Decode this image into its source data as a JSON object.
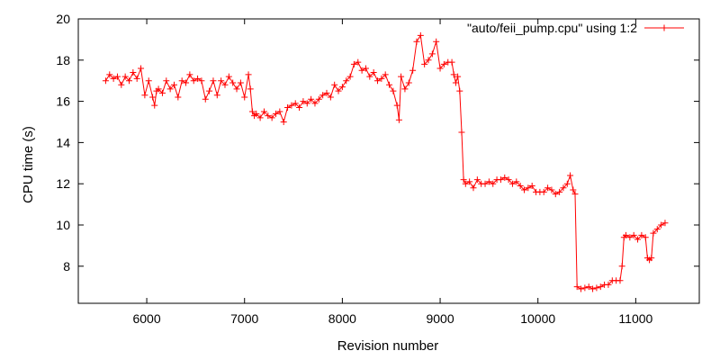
{
  "chart_data": {
    "type": "line",
    "title": "",
    "xlabel": "Revision number",
    "ylabel": "CPU time (s)",
    "xlim": [
      5300,
      11650
    ],
    "ylim": [
      6.2,
      20
    ],
    "x_ticks": [
      6000,
      7000,
      8000,
      9000,
      10000,
      11000
    ],
    "y_ticks": [
      8,
      10,
      12,
      14,
      16,
      18,
      20
    ],
    "grid": false,
    "legend_position": "top-right",
    "series": [
      {
        "name": "\"auto/feii_pump.cpu\" using 1:2",
        "color": "#ff0000",
        "marker": "plus",
        "x": [
          5580,
          5620,
          5660,
          5700,
          5740,
          5780,
          5820,
          5860,
          5900,
          5940,
          5980,
          6020,
          6060,
          6080,
          6100,
          6120,
          6160,
          6200,
          6240,
          6280,
          6320,
          6360,
          6400,
          6440,
          6480,
          6520,
          6560,
          6600,
          6640,
          6680,
          6720,
          6760,
          6800,
          6840,
          6880,
          6920,
          6960,
          7000,
          7040,
          7060,
          7080,
          7100,
          7120,
          7160,
          7200,
          7240,
          7280,
          7320,
          7360,
          7400,
          7440,
          7480,
          7520,
          7560,
          7600,
          7640,
          7680,
          7720,
          7760,
          7800,
          7840,
          7880,
          7920,
          7960,
          8000,
          8040,
          8080,
          8120,
          8160,
          8200,
          8240,
          8280,
          8320,
          8360,
          8400,
          8440,
          8480,
          8520,
          8560,
          8580,
          8600,
          8640,
          8680,
          8720,
          8760,
          8800,
          8840,
          8880,
          8920,
          8960,
          9000,
          9040,
          9080,
          9120,
          9140,
          9160,
          9180,
          9200,
          9220,
          9240,
          9260,
          9300,
          9340,
          9380,
          9420,
          9460,
          9500,
          9540,
          9580,
          9620,
          9660,
          9700,
          9740,
          9780,
          9820,
          9860,
          9900,
          9940,
          9980,
          10020,
          10060,
          10100,
          10140,
          10180,
          10220,
          10260,
          10300,
          10330,
          10360,
          10380,
          10400,
          10440,
          10480,
          10520,
          10560,
          10600,
          10640,
          10680,
          10720,
          10760,
          10800,
          10840,
          10860,
          10880,
          10900,
          10940,
          10980,
          11020,
          11060,
          11100,
          11120,
          11140,
          11160,
          11180,
          11220,
          11260,
          11300
        ],
        "y": [
          17.0,
          17.3,
          17.1,
          17.2,
          16.8,
          17.2,
          17.0,
          17.4,
          17.1,
          17.6,
          16.3,
          17.0,
          16.2,
          15.8,
          16.5,
          16.6,
          16.4,
          17.0,
          16.6,
          16.8,
          16.2,
          17.0,
          16.9,
          17.3,
          17.0,
          17.1,
          17.0,
          16.1,
          16.5,
          17.0,
          16.3,
          17.0,
          16.8,
          17.2,
          16.9,
          16.6,
          16.9,
          16.2,
          17.3,
          16.6,
          15.5,
          15.3,
          15.4,
          15.2,
          15.5,
          15.3,
          15.2,
          15.4,
          15.5,
          15.0,
          15.7,
          15.8,
          15.9,
          15.7,
          16.0,
          15.9,
          16.1,
          15.9,
          16.1,
          16.3,
          16.4,
          16.2,
          16.8,
          16.5,
          16.7,
          17.0,
          17.2,
          17.8,
          17.9,
          17.5,
          17.6,
          17.2,
          17.4,
          17.0,
          17.1,
          17.3,
          16.8,
          16.5,
          15.8,
          15.1,
          17.2,
          16.6,
          16.9,
          17.5,
          18.9,
          19.2,
          17.8,
          18.0,
          18.3,
          18.9,
          17.6,
          17.8,
          17.9,
          17.9,
          17.3,
          16.9,
          17.2,
          16.5,
          14.5,
          12.2,
          12.0,
          12.1,
          11.8,
          12.2,
          12.0,
          12.0,
          12.1,
          12.0,
          12.2,
          12.2,
          12.3,
          12.2,
          12.0,
          12.1,
          11.9,
          11.7,
          11.8,
          11.9,
          11.6,
          11.6,
          11.6,
          11.8,
          11.7,
          11.5,
          11.6,
          11.8,
          12.0,
          12.4,
          11.7,
          11.5,
          7.0,
          6.9,
          6.95,
          7.0,
          6.9,
          6.95,
          7.0,
          7.1,
          7.1,
          7.3,
          7.3,
          7.3,
          8.0,
          9.4,
          9.5,
          9.4,
          9.5,
          9.3,
          9.5,
          9.4,
          8.4,
          8.3,
          8.4,
          9.6,
          9.8,
          10.0,
          10.1
        ]
      }
    ]
  }
}
